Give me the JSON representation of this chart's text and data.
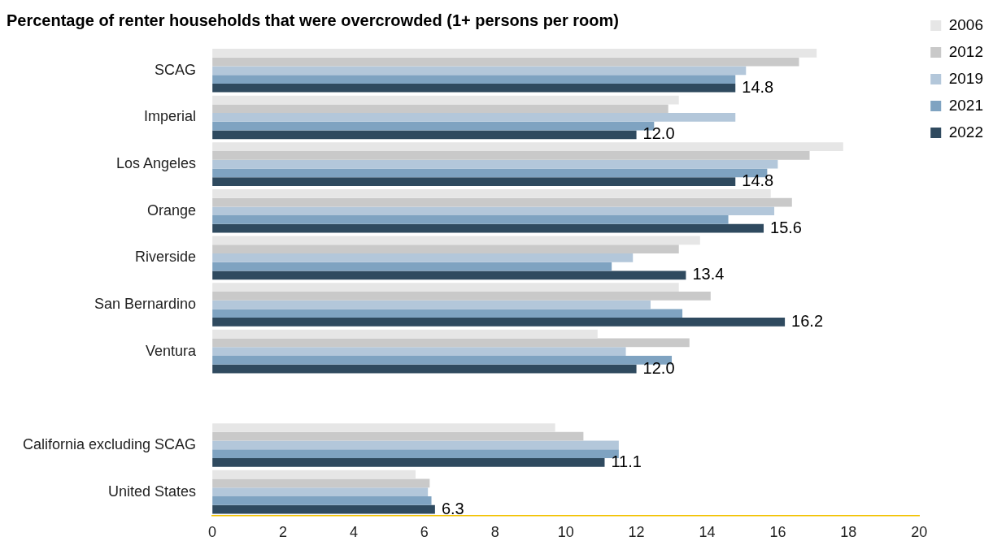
{
  "chart_data": {
    "type": "bar",
    "orientation": "horizontal",
    "title": "Percentage of renter households that were overcrowded (1+ persons per room)",
    "categories": [
      "SCAG",
      "Imperial",
      "Los Angeles",
      "Orange",
      "Riverside",
      "San Bernardino",
      "Ventura",
      null,
      "California excluding SCAG",
      "United States"
    ],
    "series": [
      {
        "name": "2006",
        "color": "#e6e6e6",
        "values": [
          17.1,
          13.2,
          17.85,
          15.8,
          13.8,
          13.2,
          10.9,
          null,
          9.7,
          5.75
        ]
      },
      {
        "name": "2012",
        "color": "#c9c9c9",
        "values": [
          16.6,
          12.9,
          16.9,
          16.4,
          13.2,
          14.1,
          13.5,
          null,
          10.5,
          6.15
        ]
      },
      {
        "name": "2019",
        "color": "#b3c7da",
        "values": [
          15.1,
          14.8,
          16.0,
          15.9,
          11.9,
          12.4,
          11.7,
          null,
          11.5,
          6.1
        ]
      },
      {
        "name": "2021",
        "color": "#7fa3c1",
        "values": [
          14.8,
          12.5,
          15.7,
          14.6,
          11.3,
          13.3,
          13.0,
          null,
          11.5,
          6.2
        ]
      },
      {
        "name": "2022",
        "color": "#2f4a5f",
        "values": [
          14.8,
          12.0,
          14.8,
          15.6,
          13.4,
          16.2,
          12.0,
          null,
          11.1,
          6.3
        ],
        "value_labels": [
          "14.8",
          "12.0",
          "14.8",
          "15.6",
          "13.4",
          "16.2",
          "12.0",
          null,
          "11.1",
          "6.3"
        ]
      }
    ],
    "xlim": [
      0,
      20
    ],
    "xticks": [
      0,
      2,
      4,
      6,
      8,
      10,
      12,
      14,
      16,
      18,
      20
    ],
    "grid": false,
    "legend": "top right"
  }
}
